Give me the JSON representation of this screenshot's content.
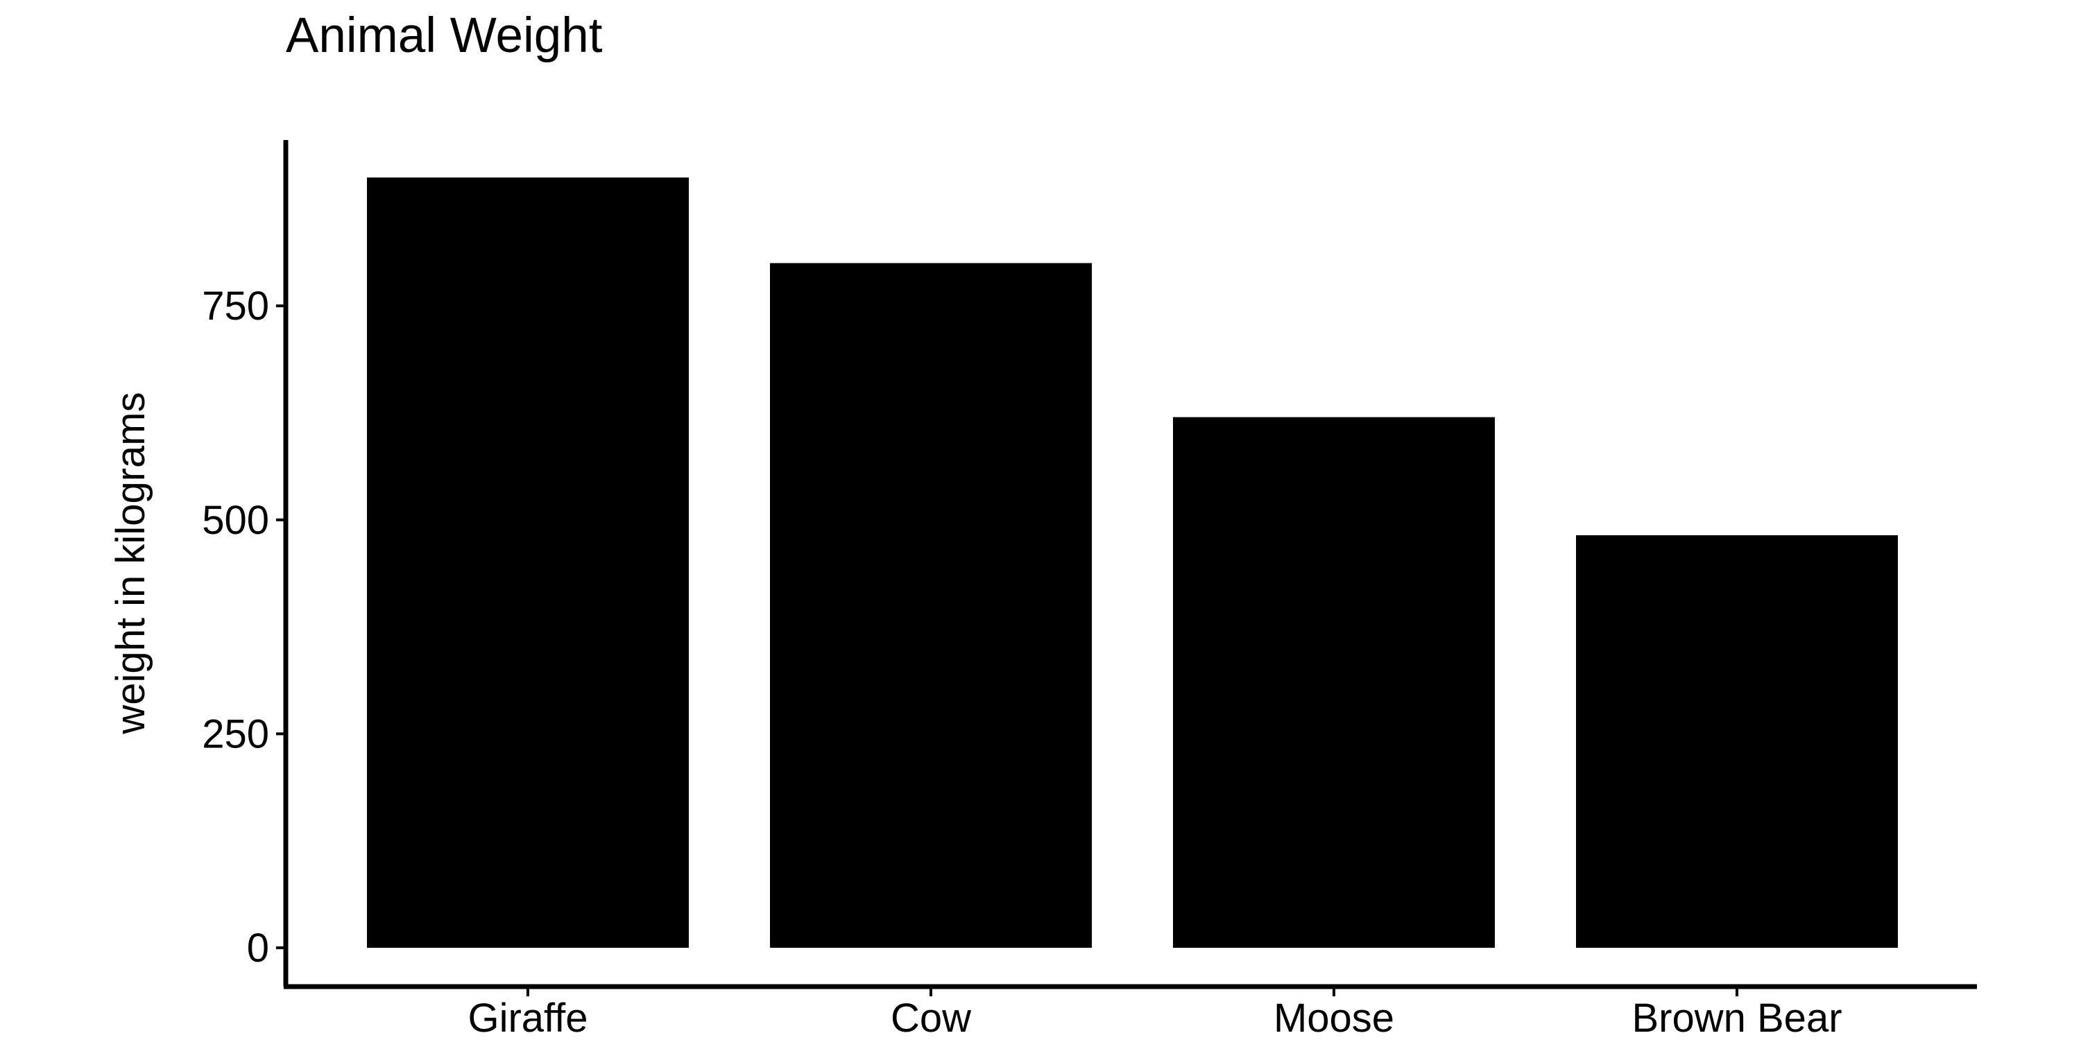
{
  "chart_data": {
    "type": "bar",
    "title": "Animal Weight",
    "xlabel": "",
    "ylabel": "weight in kilograms",
    "categories": [
      "Giraffe",
      "Cow",
      "Moose",
      "Brown Bear"
    ],
    "values": [
      900,
      800,
      620,
      482
    ],
    "ylim": [
      0,
      945
    ],
    "yticks": [
      0,
      250,
      500,
      750
    ],
    "ytick_labels": [
      "0",
      "250",
      "500",
      "750"
    ],
    "grid": false,
    "legend": "none",
    "bar_color": "#000000",
    "axis_color": "#000000",
    "background_color": "#ffffff"
  }
}
